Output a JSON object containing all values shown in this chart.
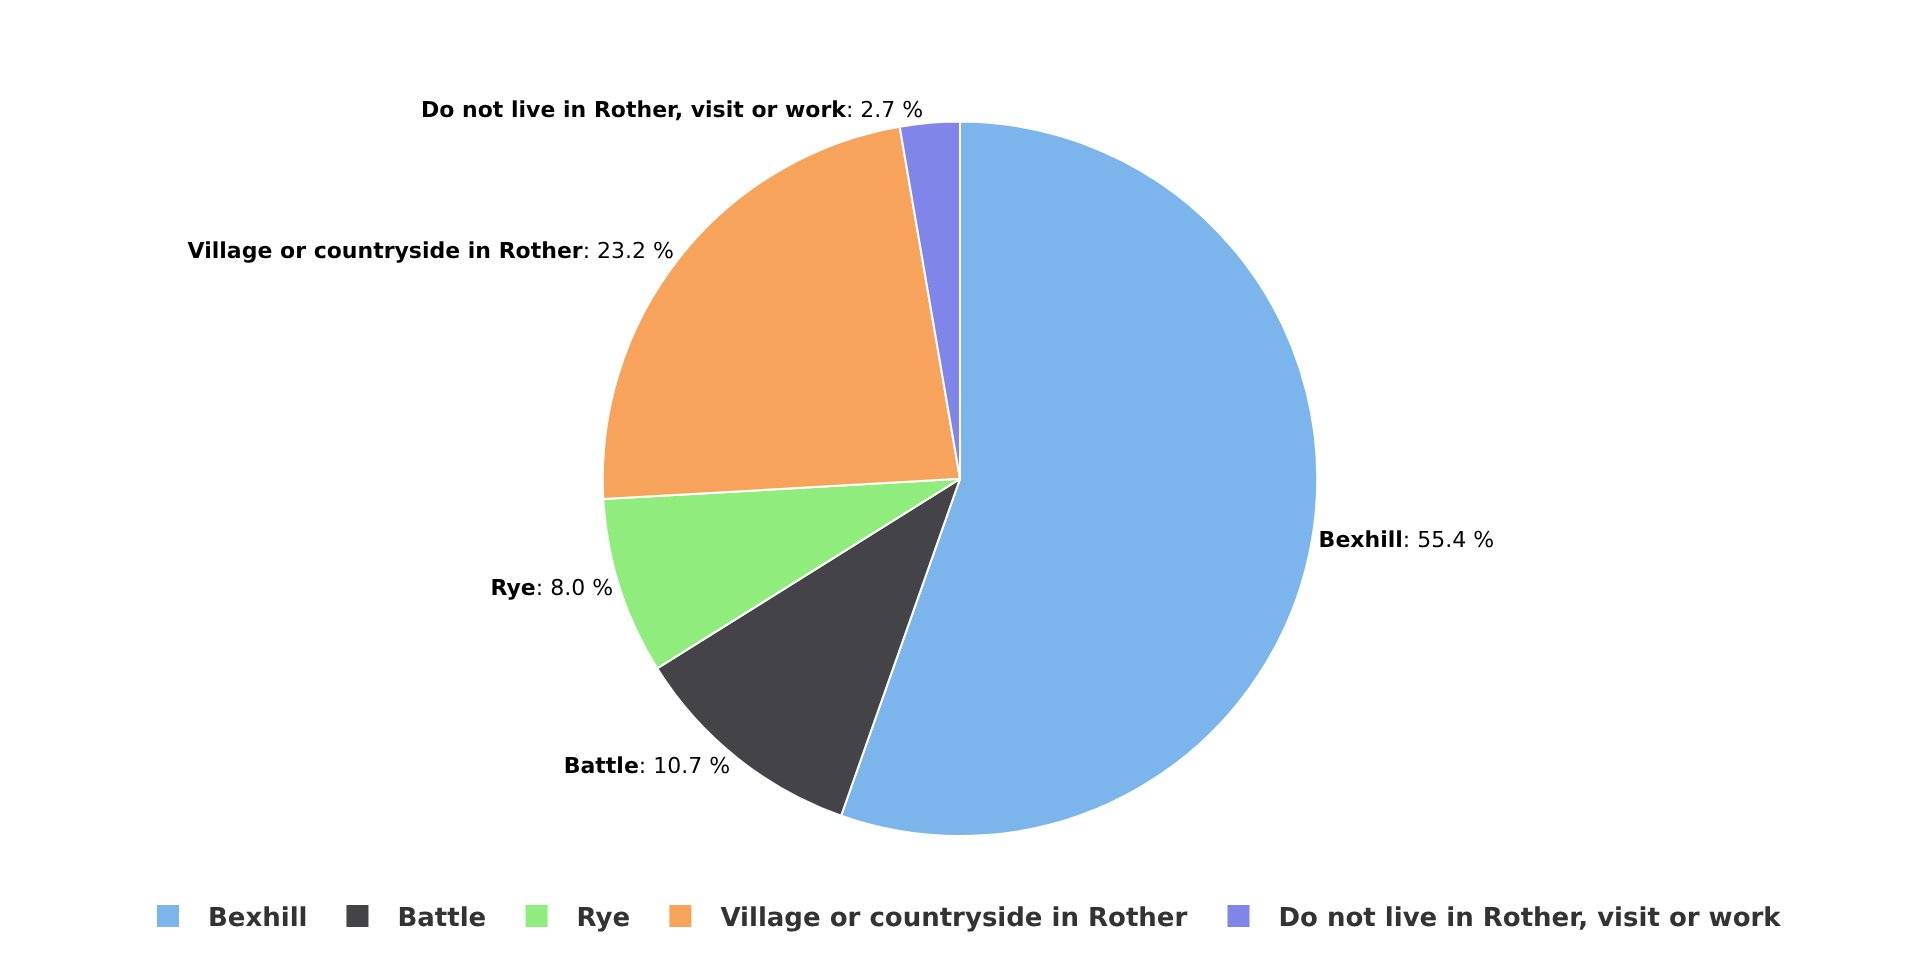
{
  "chart_data": {
    "type": "pie",
    "categories": [
      "Bexhill",
      "Battle",
      "Rye",
      "Village or countryside in Rother",
      "Do not live in Rother, visit or work"
    ],
    "values": [
      55.4,
      10.7,
      8.0,
      23.2,
      2.7
    ],
    "value_labels": [
      ": 55.4 %",
      ": 10.7 %",
      ": 8.0 %",
      ": 23.2 %",
      ": 2.7 %"
    ],
    "colors": [
      "#7cb5ec",
      "#434348",
      "#90ed7d",
      "#f7a35c",
      "#8085e9"
    ],
    "legend": "bottom"
  }
}
